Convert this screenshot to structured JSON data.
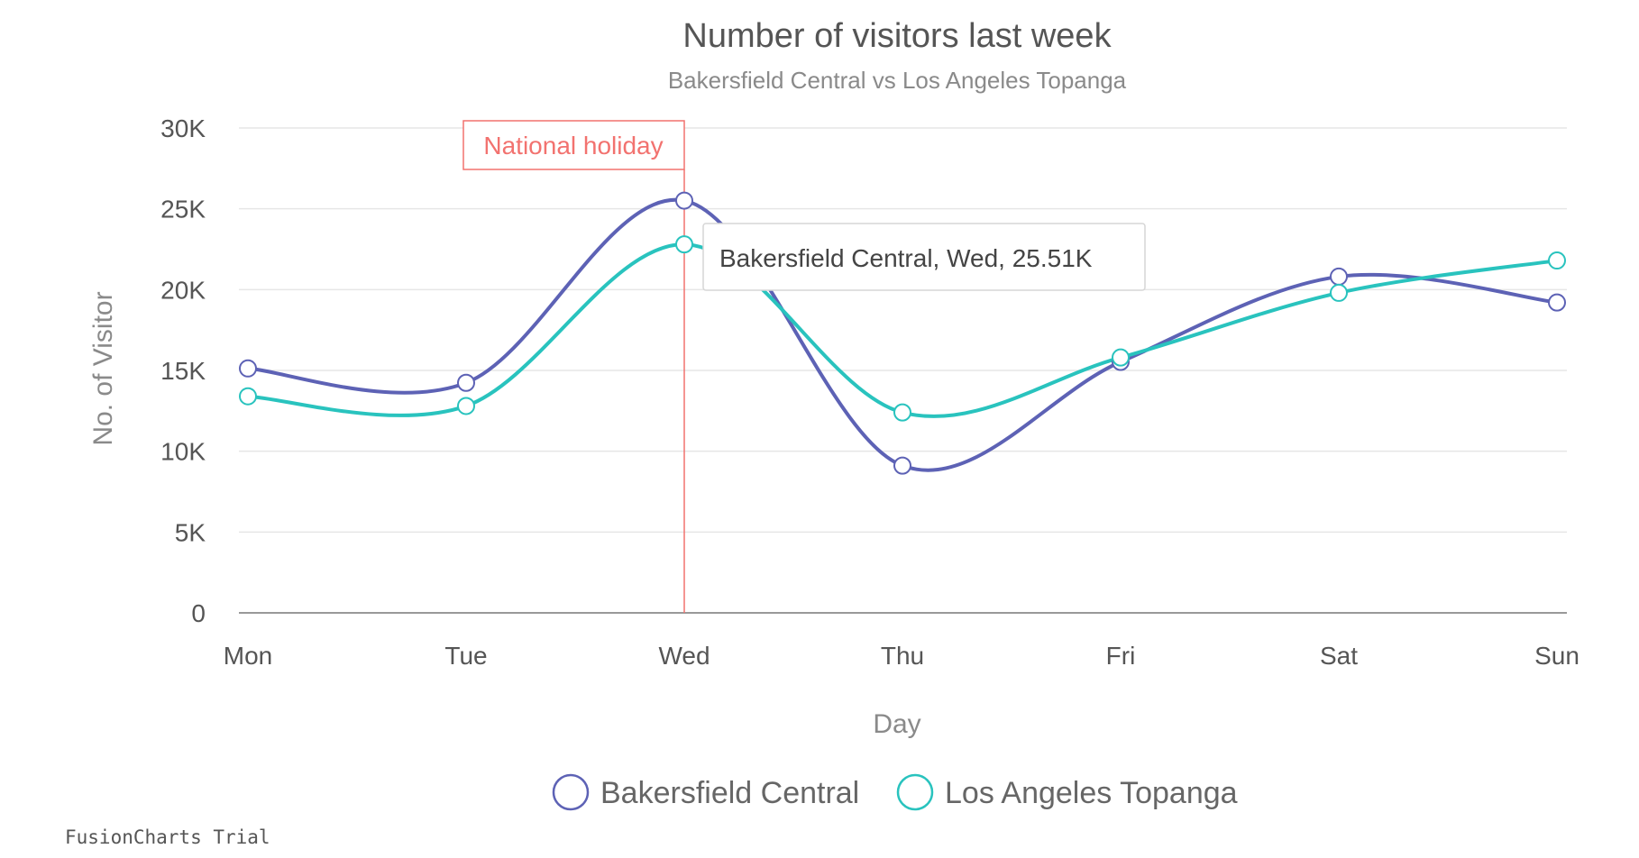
{
  "chart_data": {
    "type": "line",
    "title": "Number of visitors last week",
    "subtitle": "Bakersfield Central vs Los Angeles Topanga",
    "xlabel": "Day",
    "ylabel": "No. of Visitor",
    "categories": [
      "Mon",
      "Tue",
      "Wed",
      "Thu",
      "Fri",
      "Sat",
      "Sun"
    ],
    "ylim": [
      0,
      30000
    ],
    "y_ticks": [
      {
        "value": 0,
        "label": "0"
      },
      {
        "value": 5000,
        "label": "5K"
      },
      {
        "value": 10000,
        "label": "10K"
      },
      {
        "value": 15000,
        "label": "15K"
      },
      {
        "value": 20000,
        "label": "20K"
      },
      {
        "value": 25000,
        "label": "25K"
      },
      {
        "value": 30000,
        "label": "30K"
      }
    ],
    "grid": true,
    "curve": "smooth",
    "legend_position": "bottom-center",
    "series": [
      {
        "name": "Bakersfield Central",
        "color": "#5d62b5",
        "values": [
          15123,
          14233,
          25507,
          9110,
          15529,
          20803,
          19202
        ]
      },
      {
        "name": "Los Angeles Topanga",
        "color": "#29c3be",
        "values": [
          13400,
          12800,
          22800,
          12400,
          15800,
          19800,
          21800
        ]
      }
    ],
    "annotation": {
      "label": "National holiday",
      "category": "Wed",
      "color": "#f2726f"
    },
    "tooltip": {
      "text": "Bakersfield Central, Wed, 25.51K",
      "series_index": 0,
      "category": "Wed"
    },
    "watermark": "FusionCharts Trial"
  }
}
